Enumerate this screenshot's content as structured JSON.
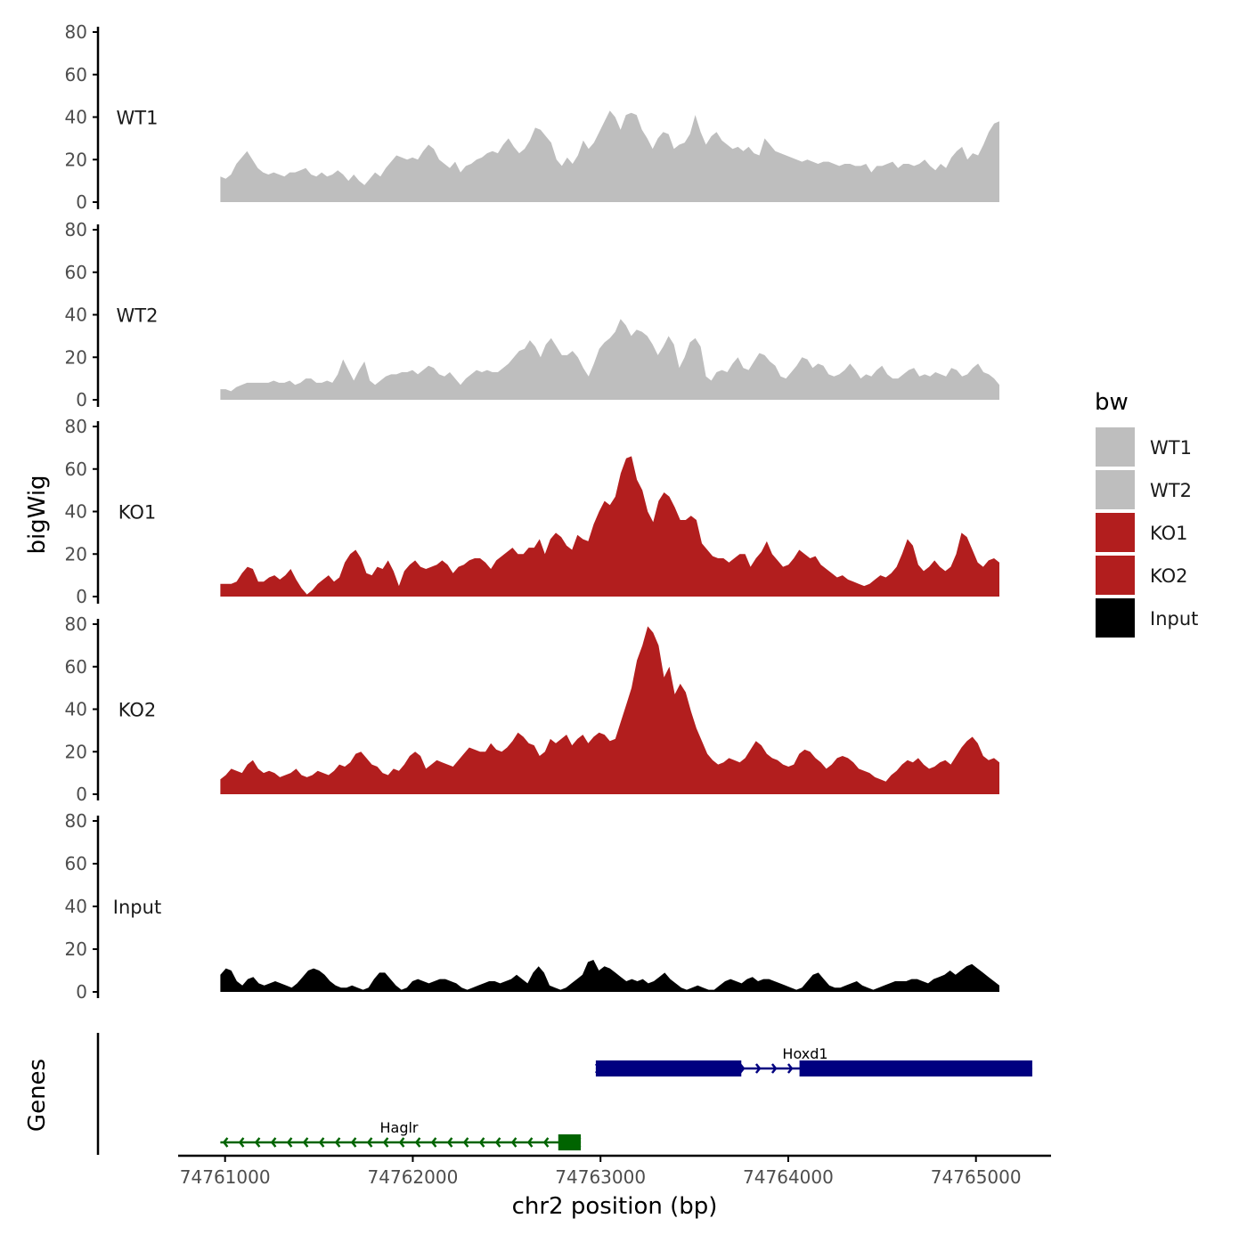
{
  "colors": {
    "wt": "#bebebe",
    "ko": "#b21e1e",
    "input": "#000000",
    "gene_plus": "#000080",
    "gene_minus": "#006400",
    "axis": "#000000"
  },
  "y_axis_title": "bigWig",
  "genes_axis_title": "Genes",
  "x_axis_title": "chr2 position (bp)",
  "chart_data": {
    "type": "area",
    "x_range": [
      74760975,
      74765125
    ],
    "xlim": [
      74760750,
      74765400
    ],
    "x_ticks": [
      74761000,
      74762000,
      74763000,
      74764000,
      74765000
    ],
    "x_tick_labels": [
      "74761000",
      "74762000",
      "74763000",
      "74764000",
      "74765000"
    ],
    "ylim": [
      0,
      80
    ],
    "y_ticks": [
      0,
      20,
      40,
      60,
      80
    ],
    "y_tick_labels": [
      "0",
      "20",
      "40",
      "60",
      "80"
    ],
    "series": [
      {
        "name": "WT1",
        "color_key": "wt",
        "values": [
          12,
          11,
          13,
          18,
          21,
          24,
          20,
          16,
          14,
          13,
          14,
          13,
          12,
          14,
          14,
          15,
          16,
          13,
          12,
          14,
          12,
          13,
          15,
          13,
          10,
          13,
          10,
          8,
          11,
          14,
          12,
          16,
          19,
          22,
          21,
          20,
          21,
          20,
          24,
          27,
          25,
          20,
          18,
          16,
          19,
          14,
          17,
          18,
          20,
          21,
          23,
          24,
          23,
          27,
          30,
          26,
          23,
          25,
          29,
          35,
          34,
          31,
          28,
          20,
          17,
          21,
          18,
          22,
          29,
          25,
          28,
          33,
          38,
          43,
          40,
          34,
          41,
          42,
          41,
          34,
          30,
          25,
          30,
          33,
          32,
          25,
          27,
          28,
          32,
          41,
          33,
          27,
          31,
          33,
          29,
          27,
          25,
          26,
          24,
          26,
          23,
          22,
          30,
          27,
          24,
          23,
          22,
          21,
          20,
          19,
          20,
          19,
          18,
          19,
          19,
          18,
          17,
          18,
          18,
          17,
          17,
          18,
          14,
          17,
          17,
          18,
          19,
          16,
          18,
          18,
          17,
          18,
          20,
          17,
          15,
          18,
          16,
          21,
          24,
          26,
          20,
          23,
          22,
          27,
          33,
          37,
          38
        ]
      },
      {
        "name": "WT2",
        "color_key": "wt",
        "values": [
          5,
          5,
          4,
          6,
          7,
          8,
          8,
          8,
          8,
          8,
          9,
          8,
          8,
          9,
          7,
          8,
          10,
          10,
          8,
          8,
          9,
          8,
          12,
          19,
          14,
          9,
          14,
          18,
          9,
          7,
          9,
          11,
          12,
          12,
          13,
          13,
          14,
          12,
          14,
          16,
          15,
          12,
          11,
          13,
          10,
          7,
          10,
          12,
          14,
          13,
          14,
          13,
          13,
          15,
          17,
          20,
          23,
          24,
          28,
          25,
          20,
          26,
          29,
          25,
          21,
          21,
          23,
          20,
          15,
          11,
          17,
          24,
          27,
          29,
          32,
          38,
          35,
          30,
          33,
          32,
          30,
          26,
          21,
          25,
          30,
          26,
          15,
          20,
          27,
          29,
          25,
          11,
          9,
          13,
          14,
          13,
          17,
          20,
          15,
          14,
          18,
          22,
          21,
          18,
          16,
          11,
          10,
          13,
          16,
          20,
          19,
          15,
          17,
          16,
          12,
          11,
          12,
          14,
          17,
          14,
          10,
          12,
          11,
          14,
          16,
          12,
          10,
          10,
          12,
          14,
          15,
          11,
          12,
          11,
          13,
          12,
          11,
          15,
          14,
          11,
          12,
          15,
          17,
          13,
          12,
          10,
          7
        ]
      },
      {
        "name": "KO1",
        "color_key": "ko",
        "values": [
          6,
          6,
          6,
          7,
          11,
          14,
          13,
          7,
          7,
          9,
          10,
          8,
          10,
          13,
          8,
          4,
          1,
          3,
          6,
          8,
          10,
          7,
          9,
          16,
          20,
          22,
          18,
          11,
          10,
          14,
          13,
          17,
          12,
          5,
          12,
          15,
          17,
          14,
          13,
          14,
          15,
          17,
          15,
          11,
          14,
          15,
          17,
          18,
          18,
          16,
          13,
          17,
          19,
          21,
          23,
          20,
          20,
          23,
          23,
          27,
          20,
          27,
          30,
          28,
          24,
          22,
          29,
          27,
          26,
          34,
          40,
          45,
          43,
          47,
          58,
          65,
          66,
          55,
          50,
          40,
          35,
          45,
          49,
          47,
          42,
          36,
          36,
          38,
          36,
          25,
          22,
          19,
          18,
          18,
          16,
          18,
          20,
          20,
          14,
          18,
          21,
          26,
          20,
          17,
          14,
          15,
          18,
          22,
          20,
          18,
          19,
          15,
          13,
          11,
          9,
          10,
          8,
          7,
          6,
          5,
          6,
          8,
          10,
          9,
          11,
          14,
          20,
          27,
          24,
          15,
          12,
          14,
          17,
          14,
          12,
          14,
          20,
          30,
          28,
          22,
          16,
          14,
          17,
          18,
          16
        ]
      },
      {
        "name": "KO2",
        "color_key": "ko",
        "values": [
          7,
          9,
          12,
          11,
          10,
          14,
          16,
          12,
          10,
          11,
          10,
          8,
          9,
          10,
          12,
          9,
          8,
          9,
          11,
          10,
          9,
          11,
          14,
          13,
          15,
          19,
          20,
          17,
          14,
          13,
          10,
          9,
          12,
          11,
          14,
          18,
          20,
          18,
          12,
          14,
          16,
          15,
          14,
          13,
          16,
          19,
          22,
          21,
          20,
          20,
          24,
          21,
          20,
          22,
          25,
          29,
          27,
          24,
          23,
          18,
          20,
          26,
          24,
          26,
          28,
          23,
          26,
          28,
          24,
          27,
          29,
          28,
          25,
          26,
          34,
          42,
          50,
          63,
          70,
          79,
          76,
          70,
          55,
          60,
          47,
          52,
          48,
          39,
          31,
          25,
          19,
          16,
          14,
          15,
          17,
          16,
          15,
          17,
          21,
          25,
          23,
          19,
          17,
          16,
          14,
          13,
          14,
          19,
          21,
          20,
          17,
          15,
          12,
          14,
          17,
          18,
          17,
          15,
          12,
          11,
          10,
          8,
          7,
          6,
          9,
          11,
          14,
          16,
          15,
          17,
          14,
          12,
          13,
          15,
          16,
          14,
          18,
          22,
          25,
          27,
          24,
          18,
          16,
          17,
          15
        ]
      },
      {
        "name": "Input",
        "color_key": "input",
        "values": [
          8,
          11,
          10,
          5,
          3,
          6,
          7,
          4,
          3,
          4,
          5,
          4,
          3,
          2,
          4,
          7,
          10,
          11,
          10,
          8,
          5,
          3,
          2,
          2,
          3,
          2,
          1,
          2,
          6,
          9,
          9,
          6,
          3,
          1,
          2,
          5,
          6,
          5,
          4,
          5,
          6,
          6,
          5,
          4,
          2,
          1,
          2,
          3,
          4,
          5,
          5,
          4,
          5,
          6,
          8,
          6,
          4,
          9,
          12,
          9,
          3,
          2,
          1,
          2,
          4,
          6,
          8,
          14,
          15,
          10,
          12,
          11,
          9,
          7,
          5,
          6,
          5,
          6,
          4,
          5,
          7,
          9,
          6,
          4,
          2,
          1,
          2,
          3,
          2,
          1,
          1,
          3,
          5,
          6,
          5,
          4,
          6,
          7,
          5,
          6,
          6,
          5,
          4,
          3,
          2,
          1,
          2,
          5,
          8,
          9,
          6,
          3,
          2,
          2,
          3,
          4,
          5,
          3,
          2,
          1,
          2,
          3,
          4,
          5,
          5,
          5,
          6,
          6,
          5,
          4,
          6,
          7,
          8,
          10,
          8,
          10,
          12,
          13,
          11,
          9,
          7,
          5,
          3
        ]
      }
    ],
    "legend": {
      "title": "bw",
      "position": "right",
      "entries": [
        {
          "label": "WT1",
          "color_key": "wt"
        },
        {
          "label": "WT2",
          "color_key": "wt"
        },
        {
          "label": "KO1",
          "color_key": "ko"
        },
        {
          "label": "KO2",
          "color_key": "ko"
        },
        {
          "label": "Input",
          "color_key": "input"
        }
      ]
    },
    "genes": [
      {
        "name": "Hoxd1",
        "strand": "+",
        "color_key": "gene_plus",
        "start": 74762975,
        "end": 74765300,
        "exons": [
          [
            74762975,
            74763750
          ],
          [
            74764060,
            74765300
          ]
        ]
      },
      {
        "name": "Haglr",
        "strand": "-",
        "color_key": "gene_minus",
        "start": 74760975,
        "end": 74762895,
        "exons": [
          [
            74762775,
            74762895
          ]
        ]
      }
    ]
  }
}
